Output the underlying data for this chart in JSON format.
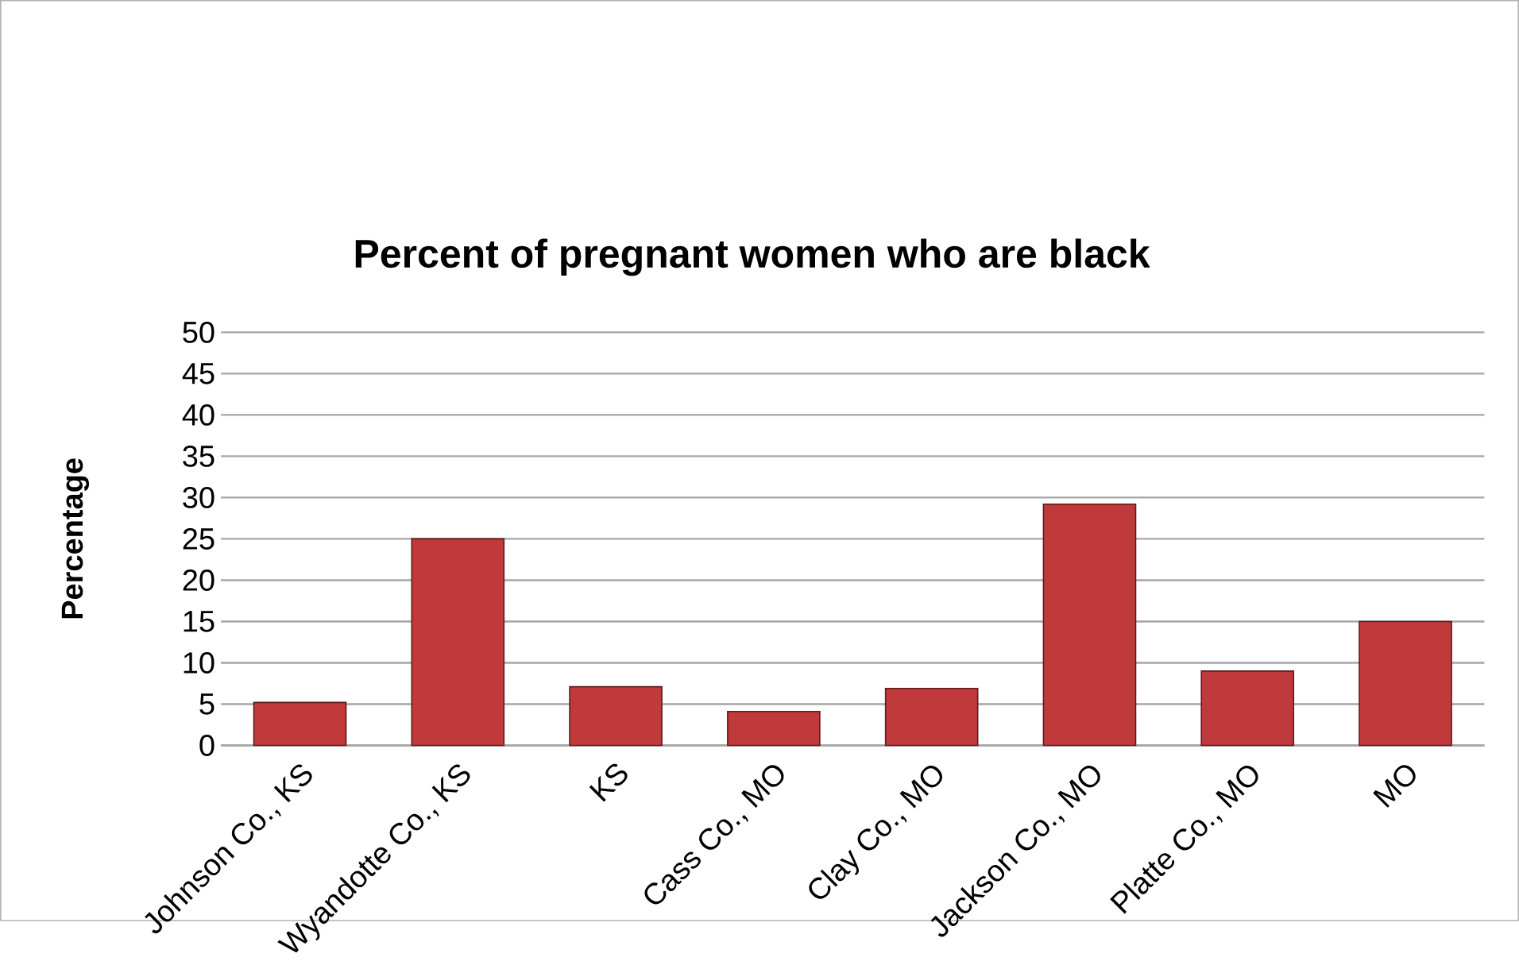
{
  "chart_data": {
    "type": "bar",
    "title": "Percent of pregnant women who are black",
    "ylabel": "Percentage",
    "categories": [
      "Johnson Co.,  KS",
      "Wyandotte Co., KS",
      "KS",
      "Cass Co., MO",
      "Clay Co., MO",
      "Jackson Co., MO",
      "Platte Co., MO",
      "MO"
    ],
    "values": [
      5.2,
      25,
      7.1,
      4.1,
      6.9,
      29.2,
      9,
      15
    ],
    "color": "#c0393b",
    "ylim": [
      0,
      50
    ],
    "yticks": [
      0,
      5,
      10,
      15,
      20,
      25,
      30,
      35,
      40,
      45,
      50
    ],
    "grid": "y"
  }
}
